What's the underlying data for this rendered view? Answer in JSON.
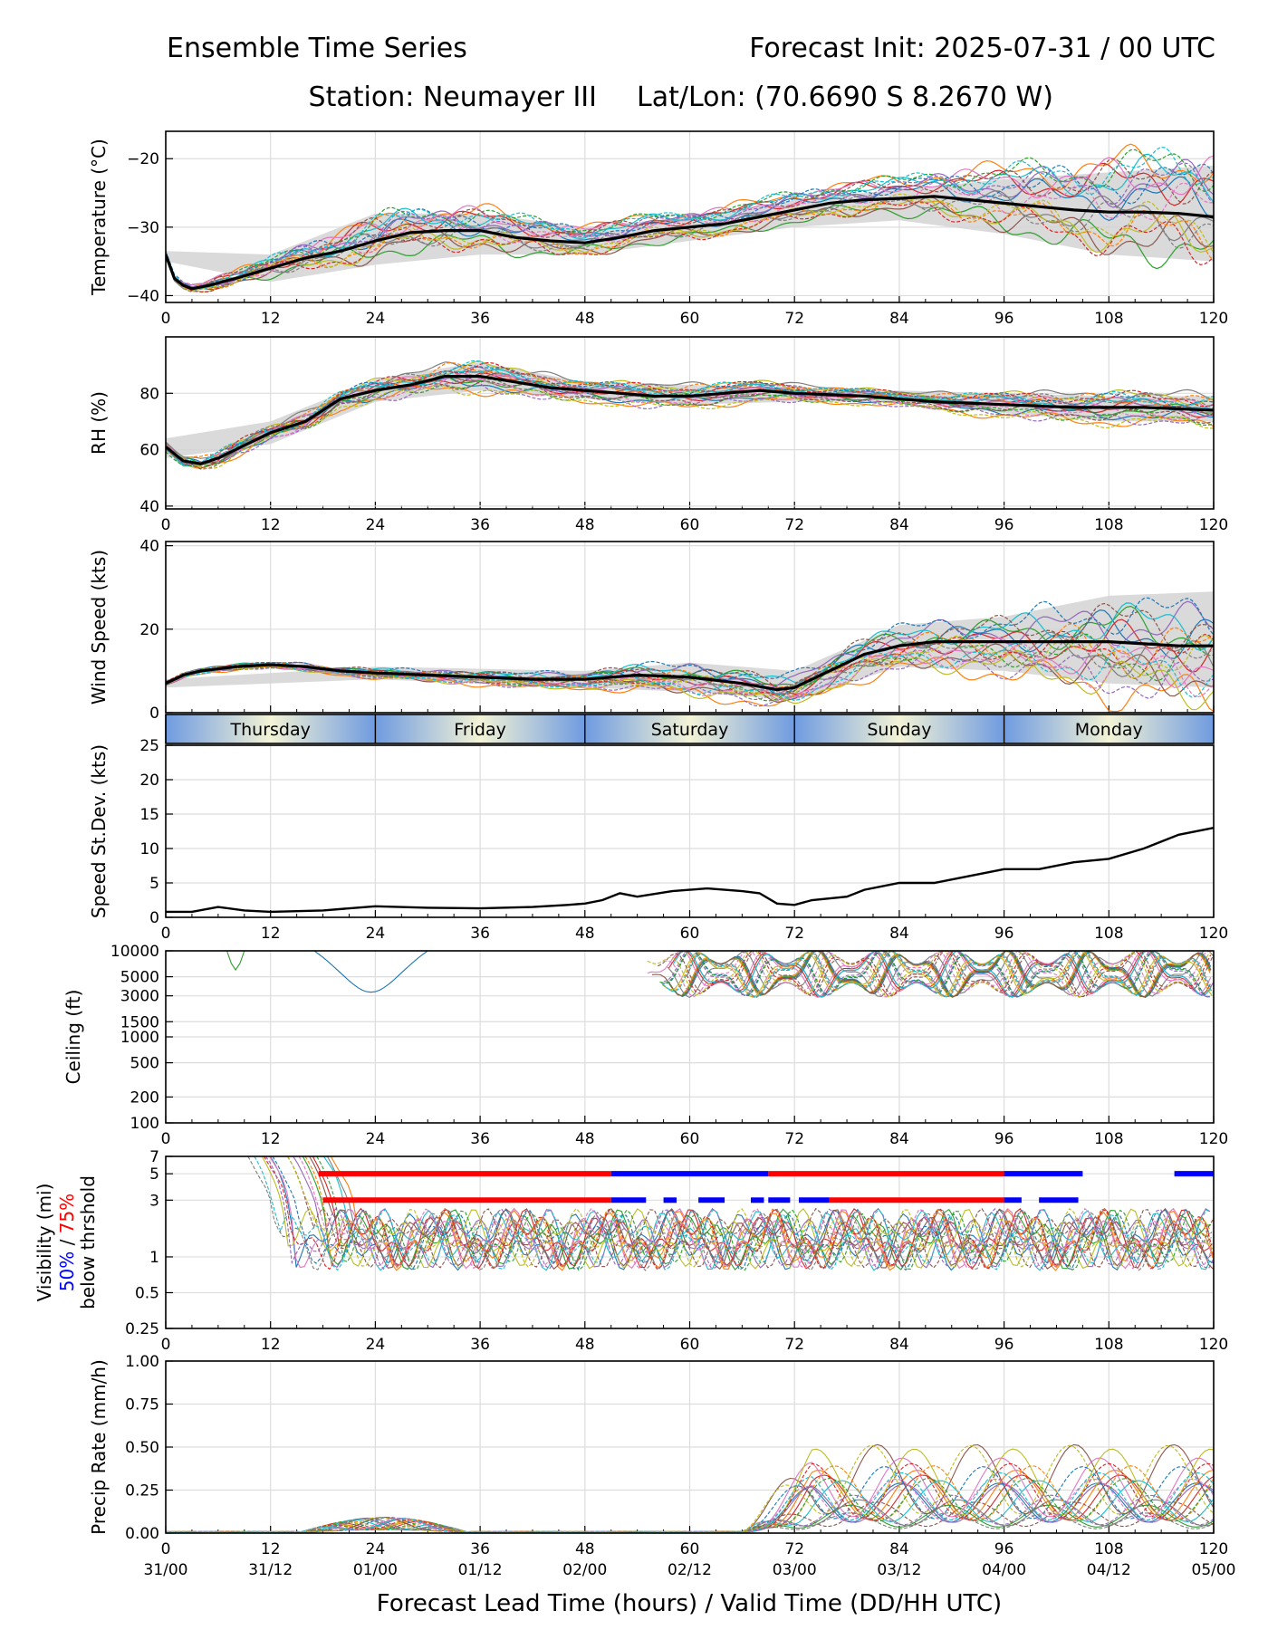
{
  "header": {
    "left_title": "Ensemble Time Series",
    "right_title": "Forecast Init: 2025-07-31 / 00 UTC",
    "station": "Station: Neumayer III",
    "latlon": "Lat/Lon: (70.6690 S 8.2670 W)"
  },
  "xaxis": {
    "label": "Forecast Lead Time (hours) / Valid Time (DD/HH UTC)",
    "hours": [
      0,
      12,
      24,
      36,
      48,
      60,
      72,
      84,
      96,
      108,
      120
    ],
    "valid_times": [
      "31/00",
      "31/12",
      "01/00",
      "01/12",
      "02/00",
      "02/12",
      "03/00",
      "03/12",
      "04/00",
      "04/12",
      "05/00"
    ]
  },
  "day_strip": [
    "Thursday",
    "Friday",
    "Saturday",
    "Sunday",
    "Monday"
  ],
  "colors": {
    "mean": "#000000",
    "spread": "#d3d3d3",
    "vis_50": "#0000ff",
    "vis_75": "#ff0000",
    "members": [
      "#1f77b4",
      "#ff7f0e",
      "#2ca02c",
      "#d62728",
      "#9467bd",
      "#8c564b",
      "#e377c2",
      "#7f7f7f",
      "#bcbd22",
      "#17becf"
    ]
  },
  "chart_data": [
    {
      "id": "temperature",
      "type": "line",
      "ylabel": "Temperature (°C)",
      "ylim": [
        -41,
        -16
      ],
      "yticks": [
        -40,
        -30,
        -20
      ],
      "ytick_labels": [
        "−40",
        "−30",
        "−20"
      ],
      "grid": true,
      "mean": {
        "x": [
          0,
          1,
          2,
          3,
          5,
          8,
          12,
          16,
          20,
          24,
          28,
          32,
          36,
          40,
          44,
          48,
          52,
          56,
          60,
          64,
          68,
          72,
          76,
          80,
          84,
          88,
          92,
          96,
          100,
          104,
          108,
          112,
          116,
          120
        ],
        "y": [
          -34,
          -37.5,
          -38.5,
          -39,
          -38.5,
          -37.5,
          -36,
          -34.5,
          -33.5,
          -32,
          -30.8,
          -30.5,
          -30.5,
          -31.5,
          -32,
          -32.3,
          -31.5,
          -30.5,
          -30,
          -29.5,
          -28.5,
          -27.5,
          -26.5,
          -26,
          -25.8,
          -25.5,
          -26,
          -26.5,
          -27,
          -27.5,
          -27.8,
          -27.8,
          -28,
          -28.5
        ]
      },
      "spread_upper": {
        "x": [
          0,
          12,
          24,
          36,
          48,
          60,
          72,
          84,
          96,
          108,
          120
        ],
        "y": [
          -33.5,
          -34,
          -28,
          -28,
          -30,
          -28.5,
          -26,
          -24.5,
          -23,
          -22,
          -21
        ]
      },
      "spread_lower": {
        "x": [
          0,
          12,
          24,
          36,
          48,
          60,
          72,
          84,
          96,
          108,
          120
        ],
        "y": [
          -35,
          -38,
          -35.5,
          -34,
          -34,
          -32,
          -30,
          -29,
          -31,
          -34,
          -35
        ]
      }
    },
    {
      "id": "rh",
      "type": "line",
      "ylabel": "RH (%)",
      "ylim": [
        39,
        100
      ],
      "yticks": [
        40,
        60,
        80
      ],
      "ytick_labels": [
        "40",
        "60",
        "80"
      ],
      "grid": true,
      "mean": {
        "x": [
          0,
          2,
          4,
          6,
          8,
          12,
          16,
          20,
          24,
          28,
          32,
          36,
          40,
          44,
          48,
          52,
          56,
          60,
          64,
          68,
          72,
          80,
          88,
          96,
          104,
          112,
          120
        ],
        "y": [
          61,
          56,
          55,
          57,
          60,
          66,
          70,
          78,
          81,
          83,
          86,
          86,
          84,
          82,
          81,
          80,
          79,
          79,
          80,
          81,
          80,
          79,
          77,
          76,
          75,
          75,
          74
        ]
      },
      "spread_upper": {
        "x": [
          0,
          12,
          24,
          36,
          48,
          60,
          72,
          84,
          96,
          108,
          120
        ],
        "y": [
          64,
          70,
          85,
          91,
          84,
          83,
          82,
          81,
          80,
          79,
          79
        ]
      },
      "spread_lower": {
        "x": [
          0,
          12,
          24,
          36,
          48,
          60,
          72,
          84,
          96,
          108,
          120
        ],
        "y": [
          57,
          62,
          77,
          81,
          78,
          76,
          77,
          77,
          73,
          70,
          70
        ]
      }
    },
    {
      "id": "wind_speed",
      "type": "line",
      "ylabel": "Wind Speed (kts)",
      "ylim": [
        0,
        41
      ],
      "yticks": [
        0,
        20,
        40
      ],
      "ytick_labels": [
        "0",
        "20",
        "40"
      ],
      "grid": true,
      "mean": {
        "x": [
          0,
          2,
          4,
          8,
          12,
          16,
          20,
          24,
          30,
          36,
          42,
          48,
          54,
          60,
          66,
          70,
          72,
          76,
          80,
          84,
          88,
          92,
          96,
          100,
          108,
          116,
          120
        ],
        "y": [
          7,
          9,
          10,
          11,
          11.5,
          11,
          10,
          9.5,
          9,
          8.5,
          8,
          8,
          9,
          8.5,
          7,
          5.5,
          6,
          10,
          14,
          16,
          17,
          17,
          17,
          17,
          17,
          16,
          16
        ]
      },
      "spread_upper": {
        "x": [
          0,
          24,
          48,
          60,
          72,
          84,
          96,
          108,
          120
        ],
        "y": [
          8,
          11,
          10,
          12,
          10,
          21,
          23,
          28,
          29
        ]
      },
      "spread_lower": {
        "x": [
          0,
          24,
          48,
          60,
          72,
          84,
          96,
          108,
          120
        ],
        "y": [
          6,
          8,
          6,
          5,
          3,
          11,
          10,
          7,
          6
        ]
      }
    },
    {
      "id": "speed_stdev",
      "type": "line",
      "ylabel": "Speed St.Dev. (kts)",
      "ylim": [
        0,
        25
      ],
      "yticks": [
        0,
        5,
        10,
        15,
        20,
        25
      ],
      "ytick_labels": [
        "0",
        "5",
        "10",
        "15",
        "20",
        "25"
      ],
      "grid": true,
      "mean": {
        "x": [
          0,
          3,
          6,
          9,
          12,
          18,
          24,
          30,
          36,
          42,
          46,
          48,
          50,
          52,
          54,
          58,
          62,
          64,
          66,
          68,
          70,
          72,
          74,
          78,
          80,
          84,
          88,
          92,
          96,
          98,
          100,
          104,
          108,
          112,
          116,
          120
        ],
        "y": [
          0.8,
          0.8,
          1.5,
          1.0,
          0.8,
          1.0,
          1.6,
          1.4,
          1.3,
          1.5,
          1.8,
          2.0,
          2.5,
          3.5,
          3.0,
          3.8,
          4.2,
          4.0,
          3.8,
          3.5,
          2.0,
          1.8,
          2.5,
          3.0,
          4.0,
          5.0,
          5.0,
          6.0,
          7.0,
          7.0,
          7.0,
          8.0,
          8.5,
          10.0,
          12.0,
          13.0
        ]
      }
    },
    {
      "id": "ceiling",
      "type": "line",
      "scale": "log",
      "ylabel": "Ceiling (ft)",
      "ylim": [
        100,
        10000
      ],
      "yticks": [
        100,
        200,
        500,
        1000,
        1500,
        3000,
        5000,
        10000
      ],
      "ytick_labels": [
        "100",
        "200",
        "500",
        "1000",
        "1500",
        "3000",
        "5000",
        "10000"
      ],
      "grid": true
    },
    {
      "id": "visibility",
      "type": "line",
      "scale": "log",
      "ylabel": "Visibility (mi)",
      "ylabel_line2_a": "50%",
      "ylabel_line2_sep": " / ",
      "ylabel_line2_b": "75%",
      "ylabel_line3": "below thrshold",
      "ylim": [
        0.25,
        7
      ],
      "yticks": [
        0.25,
        0.5,
        1,
        3,
        5,
        7
      ],
      "ytick_labels": [
        "0.25",
        "0.5",
        "1",
        "3",
        "5",
        "7"
      ],
      "grid": true,
      "threshold_75_segments": [
        {
          "y": 5,
          "x0": 17.5,
          "x1": 51
        },
        {
          "y": 3,
          "x0": 18,
          "x1": 51
        },
        {
          "y": 5,
          "x0": 69,
          "x1": 96
        },
        {
          "y": 3,
          "x0": 76,
          "x1": 96
        }
      ],
      "threshold_50_segments": [
        {
          "y": 5,
          "x0": 51,
          "x1": 69
        },
        {
          "y": 5,
          "x0": 96,
          "x1": 105
        },
        {
          "y": 5,
          "x0": 115.5,
          "x1": 120
        },
        {
          "y": 3,
          "x0": 51,
          "x1": 55
        },
        {
          "y": 3,
          "x0": 57,
          "x1": 58.5
        },
        {
          "y": 3,
          "x0": 61,
          "x1": 64
        },
        {
          "y": 3,
          "x0": 67,
          "x1": 68.5
        },
        {
          "y": 3,
          "x0": 69,
          "x1": 71.5
        },
        {
          "y": 3,
          "x0": 72.5,
          "x1": 76
        },
        {
          "y": 3,
          "x0": 96,
          "x1": 98
        },
        {
          "y": 3,
          "x0": 100,
          "x1": 104.5
        }
      ]
    },
    {
      "id": "precip_rate",
      "type": "line",
      "ylabel": "Precip Rate (mm/h)",
      "ylim": [
        0,
        1
      ],
      "yticks": [
        0,
        0.25,
        0.5,
        0.75,
        1.0
      ],
      "ytick_labels": [
        "0.00",
        "0.25",
        "0.50",
        "0.75",
        "1.00"
      ],
      "grid": true
    }
  ]
}
